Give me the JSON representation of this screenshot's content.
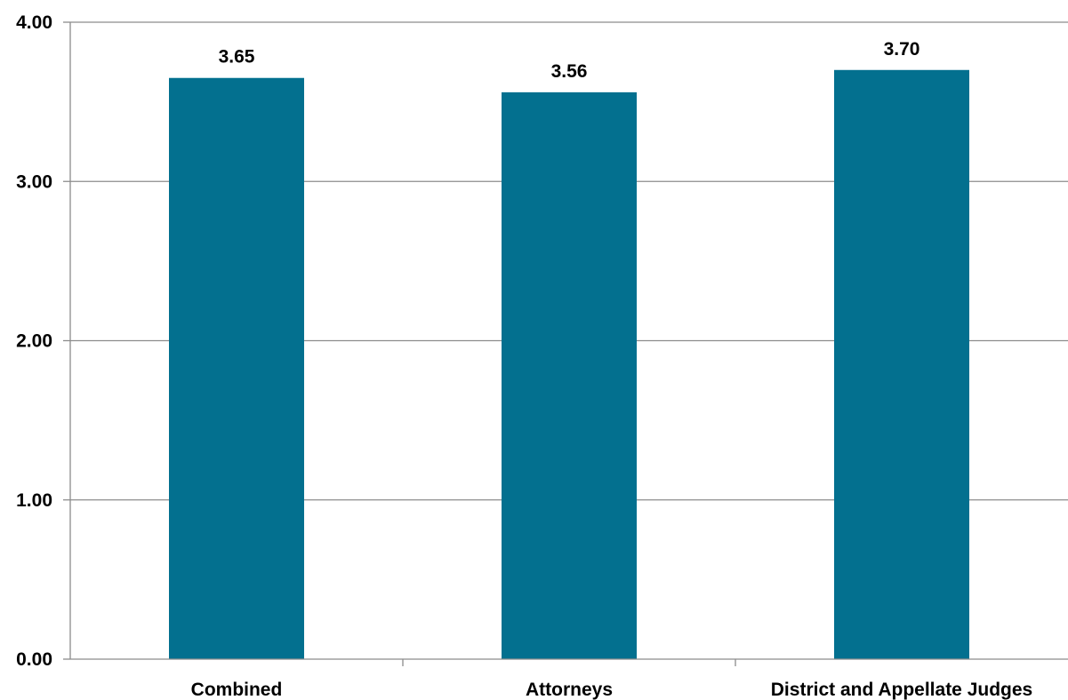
{
  "chart_data": {
    "type": "bar",
    "categories": [
      "Combined",
      "Attorneys",
      "District and Appellate Judges"
    ],
    "values": [
      3.65,
      3.56,
      3.7
    ],
    "data_labels": [
      "3.65",
      "3.56",
      "3.70"
    ],
    "y_ticks": [
      0,
      1,
      2,
      3,
      4
    ],
    "y_tick_labels": [
      "0.00",
      "1.00",
      "2.00",
      "3.00",
      "4.00"
    ],
    "ylim": [
      0,
      4
    ],
    "grid": true,
    "legend": "none",
    "bar_color": "#03708F"
  }
}
